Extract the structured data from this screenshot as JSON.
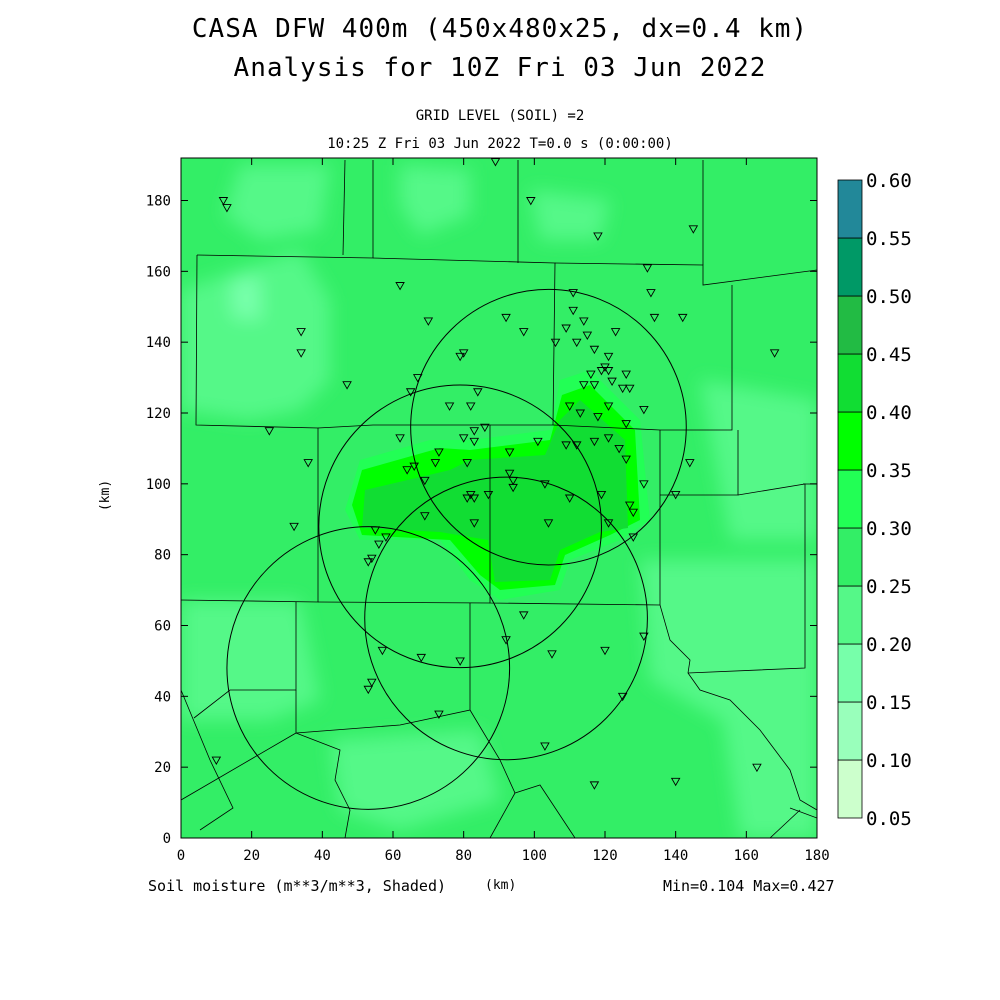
{
  "titles": {
    "line1": "CASA DFW 400m (450x480x25, dx=0.4 km)",
    "line2": "Analysis for 10Z Fri 03 Jun 2022",
    "grid_level": "GRID LEVEL (SOIL) =2",
    "time": "10:25 Z Fri 03 Jun 2022   T=0.0 s (0:00:00)"
  },
  "axes": {
    "x_unit": "(km)",
    "y_unit": "(km)",
    "x_ticks": [
      0,
      20,
      40,
      60,
      80,
      100,
      120,
      140,
      160,
      180
    ],
    "y_ticks": [
      0,
      20,
      40,
      60,
      80,
      100,
      120,
      140,
      160,
      180
    ],
    "x_range": [
      0,
      180
    ],
    "y_range": [
      0,
      192
    ]
  },
  "footer": {
    "field_label": "Soil moisture (m**3/m**3, Shaded)",
    "unit_label": "(km)",
    "minmax": "Min=0.104 Max=0.427"
  },
  "colorbar": {
    "levels": [
      "0.05",
      "0.10",
      "0.15",
      "0.20",
      "0.25",
      "0.30",
      "0.35",
      "0.40",
      "0.45",
      "0.50",
      "0.55",
      "0.60"
    ],
    "colors": [
      "#ccffcc",
      "#99ffbb",
      "#77ffaa",
      "#55f888",
      "#33ee66",
      "#22ff55",
      "#00ff00",
      "#11dd33",
      "#22bb44",
      "#009966",
      "#228899",
      "#1166ee"
    ]
  },
  "radars": [
    {
      "x": 104,
      "y": 116,
      "r": 39
    },
    {
      "x": 79,
      "y": 88,
      "r": 40
    },
    {
      "x": 92,
      "y": 62,
      "r": 40
    },
    {
      "x": 53,
      "y": 48,
      "r": 40
    }
  ],
  "stations": [
    [
      89,
      191
    ],
    [
      12,
      180
    ],
    [
      13,
      178
    ],
    [
      99,
      180
    ],
    [
      145,
      172
    ],
    [
      118,
      170
    ],
    [
      132,
      161
    ],
    [
      62,
      156
    ],
    [
      133,
      154
    ],
    [
      111,
      154
    ],
    [
      111,
      149
    ],
    [
      114,
      146
    ],
    [
      34,
      143
    ],
    [
      70,
      146
    ],
    [
      92,
      147
    ],
    [
      97,
      143
    ],
    [
      109,
      144
    ],
    [
      115,
      142
    ],
    [
      123,
      143
    ],
    [
      134,
      147
    ],
    [
      142,
      147
    ],
    [
      34,
      137
    ],
    [
      79,
      136
    ],
    [
      80,
      137
    ],
    [
      106,
      140
    ],
    [
      112,
      140
    ],
    [
      117,
      138
    ],
    [
      121,
      136
    ],
    [
      168,
      137
    ],
    [
      116,
      131
    ],
    [
      119,
      132
    ],
    [
      120,
      133
    ],
    [
      121,
      132
    ],
    [
      126,
      131
    ],
    [
      125,
      127
    ],
    [
      67,
      130
    ],
    [
      47,
      128
    ],
    [
      65,
      126
    ],
    [
      76,
      122
    ],
    [
      82,
      122
    ],
    [
      84,
      126
    ],
    [
      114,
      128
    ],
    [
      117,
      128
    ],
    [
      122,
      129
    ],
    [
      127,
      127
    ],
    [
      131,
      121
    ],
    [
      110,
      122
    ],
    [
      113,
      120
    ],
    [
      118,
      119
    ],
    [
      121,
      122
    ],
    [
      126,
      117
    ],
    [
      83,
      115
    ],
    [
      86,
      116
    ],
    [
      80,
      113
    ],
    [
      83,
      112
    ],
    [
      62,
      113
    ],
    [
      73,
      109
    ],
    [
      93,
      109
    ],
    [
      101,
      112
    ],
    [
      109,
      111
    ],
    [
      112,
      111
    ],
    [
      117,
      112
    ],
    [
      121,
      113
    ],
    [
      124,
      110
    ],
    [
      126,
      107
    ],
    [
      25,
      115
    ],
    [
      36,
      106
    ],
    [
      64,
      104
    ],
    [
      66,
      105
    ],
    [
      69,
      101
    ],
    [
      72,
      106
    ],
    [
      81,
      106
    ],
    [
      93,
      103
    ],
    [
      94,
      101
    ],
    [
      94,
      99
    ],
    [
      144,
      106
    ],
    [
      82,
      97
    ],
    [
      81,
      96
    ],
    [
      83,
      96
    ],
    [
      87,
      97
    ],
    [
      103,
      100
    ],
    [
      131,
      100
    ],
    [
      140,
      97
    ],
    [
      110,
      96
    ],
    [
      119,
      97
    ],
    [
      127,
      94
    ],
    [
      128,
      92
    ],
    [
      32,
      88
    ],
    [
      69,
      91
    ],
    [
      83,
      89
    ],
    [
      104,
      89
    ],
    [
      121,
      89
    ],
    [
      128,
      85
    ],
    [
      55,
      87
    ],
    [
      58,
      85
    ],
    [
      56,
      83
    ],
    [
      53,
      78
    ],
    [
      54,
      79
    ],
    [
      97,
      63
    ],
    [
      131,
      57
    ],
    [
      92,
      56
    ],
    [
      57,
      53
    ],
    [
      68,
      51
    ],
    [
      79,
      50
    ],
    [
      105,
      52
    ],
    [
      120,
      53
    ],
    [
      53,
      42
    ],
    [
      54,
      44
    ],
    [
      73,
      35
    ],
    [
      125,
      40
    ],
    [
      10,
      22
    ],
    [
      103,
      26
    ],
    [
      117,
      15
    ],
    [
      140,
      16
    ],
    [
      163,
      20
    ]
  ]
}
